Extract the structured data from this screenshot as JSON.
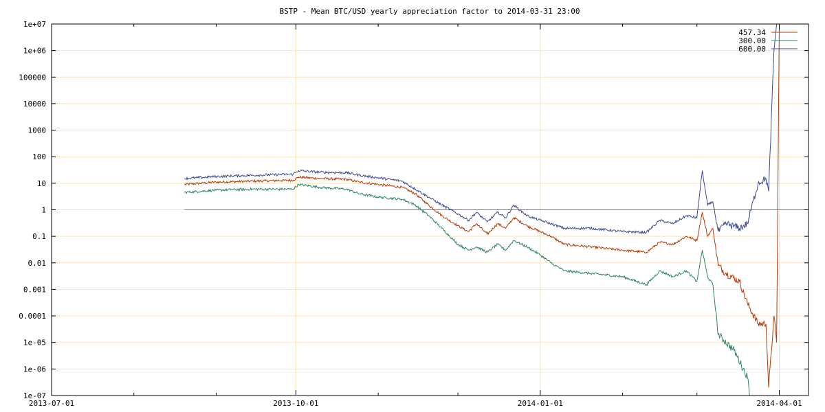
{
  "chart_data": {
    "type": "line",
    "title": "BSTP - Mean BTC/USD yearly appreciation factor to 2014-03-31 23:00",
    "xlabel": "",
    "ylabel": "",
    "y_scale": "log",
    "xlim": [
      "2013-07-01",
      "2014-04-12"
    ],
    "ylim": [
      1e-07,
      10000000.0
    ],
    "x_ticks": [
      "2013-07-01",
      "2013-10-01",
      "2014-01-01",
      "2014-04-01"
    ],
    "y_ticks": [
      "1e+07",
      "1e+06",
      "100000",
      "10000",
      "1000",
      "100",
      "10",
      "1",
      "0.1",
      "0.01",
      "0.001",
      "0.0001",
      "1e-05",
      "1e-06",
      "1e-07"
    ],
    "grid": true,
    "legend_position": "top-right",
    "reference_line": {
      "y": 1,
      "from": "2013-08-20",
      "to": "2014-04-12",
      "color": "#a07c3c"
    },
    "series": [
      {
        "name": "457.34",
        "color": "#b03a08",
        "points": [
          [
            "2013-08-20",
            9
          ],
          [
            "2013-09-01",
            11
          ],
          [
            "2013-09-15",
            12
          ],
          [
            "2013-09-30",
            13
          ],
          [
            "2013-10-02",
            17
          ],
          [
            "2013-10-10",
            15
          ],
          [
            "2013-10-20",
            14
          ],
          [
            "2013-10-25",
            11
          ],
          [
            "2013-11-01",
            9
          ],
          [
            "2013-11-10",
            7
          ],
          [
            "2013-11-15",
            4
          ],
          [
            "2013-11-20",
            1.5
          ],
          [
            "2013-11-25",
            0.6
          ],
          [
            "2013-12-01",
            0.25
          ],
          [
            "2013-12-05",
            0.15
          ],
          [
            "2013-12-08",
            0.3
          ],
          [
            "2013-12-12",
            0.12
          ],
          [
            "2013-12-16",
            0.3
          ],
          [
            "2013-12-19",
            0.2
          ],
          [
            "2013-12-22",
            0.5
          ],
          [
            "2013-12-27",
            0.25
          ],
          [
            "2014-01-01",
            0.15
          ],
          [
            "2014-01-05",
            0.1
          ],
          [
            "2014-01-10",
            0.05
          ],
          [
            "2014-01-20",
            0.04
          ],
          [
            "2014-02-01",
            0.03
          ],
          [
            "2014-02-10",
            0.025
          ],
          [
            "2014-02-15",
            0.06
          ],
          [
            "2014-02-20",
            0.05
          ],
          [
            "2014-02-25",
            0.1
          ],
          [
            "2014-03-01",
            0.07
          ],
          [
            "2014-03-03",
            0.8
          ],
          [
            "2014-03-05",
            0.1
          ],
          [
            "2014-03-07",
            0.2
          ],
          [
            "2014-03-09",
            0.008
          ],
          [
            "2014-03-12",
            0.004
          ],
          [
            "2014-03-17",
            0.002
          ],
          [
            "2014-03-20",
            0.0003
          ],
          [
            "2014-03-24",
            5e-05
          ],
          [
            "2014-03-27",
            5e-05
          ],
          [
            "2014-03-28",
            2e-07
          ],
          [
            "2014-03-30",
            0.0001
          ],
          [
            "2014-03-31",
            1e-05
          ],
          [
            "2014-04-01",
            10000000
          ]
        ]
      },
      {
        "name": "300.00",
        "color": "#2f8460",
        "points": [
          [
            "2013-08-20",
            4.5
          ],
          [
            "2013-09-01",
            5.5
          ],
          [
            "2013-09-15",
            6
          ],
          [
            "2013-09-30",
            6
          ],
          [
            "2013-10-02",
            9
          ],
          [
            "2013-10-10",
            7
          ],
          [
            "2013-10-20",
            6
          ],
          [
            "2013-10-25",
            4
          ],
          [
            "2013-11-01",
            3
          ],
          [
            "2013-11-10",
            2.5
          ],
          [
            "2013-11-15",
            1.5
          ],
          [
            "2013-11-20",
            0.6
          ],
          [
            "2013-11-25",
            0.2
          ],
          [
            "2013-12-01",
            0.05
          ],
          [
            "2013-12-05",
            0.03
          ],
          [
            "2013-12-08",
            0.04
          ],
          [
            "2013-12-12",
            0.025
          ],
          [
            "2013-12-16",
            0.05
          ],
          [
            "2013-12-19",
            0.03
          ],
          [
            "2013-12-22",
            0.07
          ],
          [
            "2013-12-27",
            0.04
          ],
          [
            "2014-01-01",
            0.02
          ],
          [
            "2014-01-05",
            0.01
          ],
          [
            "2014-01-10",
            0.005
          ],
          [
            "2014-01-20",
            0.004
          ],
          [
            "2014-02-01",
            0.003
          ],
          [
            "2014-02-10",
            0.0015
          ],
          [
            "2014-02-15",
            0.005
          ],
          [
            "2014-02-20",
            0.003
          ],
          [
            "2014-02-25",
            0.005
          ],
          [
            "2014-03-01",
            0.002
          ],
          [
            "2014-03-03",
            0.03
          ],
          [
            "2014-03-05",
            0.003
          ],
          [
            "2014-03-07",
            0.0015
          ],
          [
            "2014-03-09",
            2e-05
          ],
          [
            "2014-03-15",
            5e-06
          ],
          [
            "2014-03-20",
            5e-07
          ],
          [
            "2014-03-21",
            1e-07
          ]
        ]
      },
      {
        "name": "600.00",
        "color": "#3c4a8c",
        "points": [
          [
            "2013-08-20",
            15
          ],
          [
            "2013-09-01",
            18
          ],
          [
            "2013-09-15",
            20
          ],
          [
            "2013-09-30",
            22
          ],
          [
            "2013-10-02",
            30
          ],
          [
            "2013-10-10",
            26
          ],
          [
            "2013-10-20",
            25
          ],
          [
            "2013-10-25",
            20
          ],
          [
            "2013-11-01",
            16
          ],
          [
            "2013-11-10",
            12
          ],
          [
            "2013-11-15",
            6
          ],
          [
            "2013-11-20",
            3
          ],
          [
            "2013-11-25",
            1.5
          ],
          [
            "2013-12-01",
            0.7
          ],
          [
            "2013-12-05",
            0.4
          ],
          [
            "2013-12-08",
            0.8
          ],
          [
            "2013-12-12",
            0.35
          ],
          [
            "2013-12-16",
            0.8
          ],
          [
            "2013-12-19",
            0.5
          ],
          [
            "2013-12-22",
            1.5
          ],
          [
            "2013-12-27",
            0.6
          ],
          [
            "2014-01-01",
            0.4
          ],
          [
            "2014-01-05",
            0.3
          ],
          [
            "2014-01-10",
            0.2
          ],
          [
            "2014-01-20",
            0.2
          ],
          [
            "2014-02-01",
            0.15
          ],
          [
            "2014-02-10",
            0.14
          ],
          [
            "2014-02-15",
            0.4
          ],
          [
            "2014-02-20",
            0.3
          ],
          [
            "2014-02-25",
            0.6
          ],
          [
            "2014-03-01",
            0.5
          ],
          [
            "2014-03-03",
            30
          ],
          [
            "2014-03-05",
            1.5
          ],
          [
            "2014-03-07",
            2
          ],
          [
            "2014-03-09",
            0.15
          ],
          [
            "2014-03-12",
            0.3
          ],
          [
            "2014-03-17",
            0.2
          ],
          [
            "2014-03-20",
            0.3
          ],
          [
            "2014-03-24",
            10
          ],
          [
            "2014-03-27",
            15
          ],
          [
            "2014-03-28",
            5
          ],
          [
            "2014-03-30",
            1000000
          ],
          [
            "2014-03-31",
            10000000
          ]
        ]
      }
    ]
  }
}
